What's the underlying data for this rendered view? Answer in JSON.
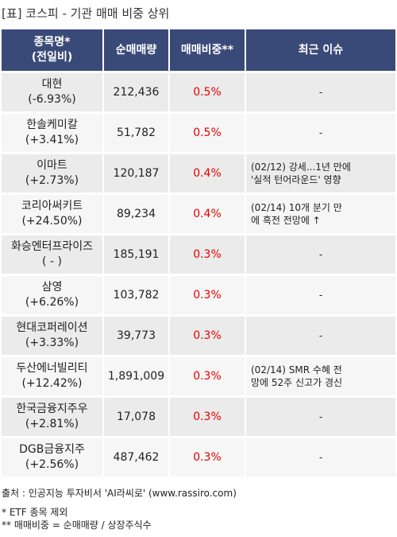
{
  "title": "[표] 코스피 - 기관 매매 비중 상위",
  "header": {
    "col1_line1": "종목명*",
    "col1_line2": "(전일비)",
    "col2": "순매매량",
    "col3": "매매비중**",
    "col4": "최근 이슈"
  },
  "rows": [
    {
      "name": "대현",
      "change": "(-6.93%)",
      "volume": "212,436",
      "ratio": "0.5%",
      "issue1": "-",
      "issue2": ""
    },
    {
      "name": "한솔케미칼",
      "change": "(+3.41%)",
      "volume": "51,782",
      "ratio": "0.5%",
      "issue1": "-",
      "issue2": ""
    },
    {
      "name": "이마트",
      "change": "(+2.73%)",
      "volume": "120,187",
      "ratio": "0.4%",
      "issue1": "(02/12) 강세...1년 만에",
      "issue2": "'실적 턴어라운드' 영향"
    },
    {
      "name": "코리아써키트",
      "change": "(+24.50%)",
      "volume": "89,234",
      "ratio": "0.4%",
      "issue1": "(02/14) 10개 분기 만",
      "issue2": "에 흑전 전망에 ↑"
    },
    {
      "name": "화승엔터프라이즈",
      "change": "( - )",
      "volume": "185,191",
      "ratio": "0.3%",
      "issue1": "-",
      "issue2": ""
    },
    {
      "name": "삼영",
      "change": "(+6.26%)",
      "volume": "103,782",
      "ratio": "0.3%",
      "issue1": "-",
      "issue2": ""
    },
    {
      "name": "현대코퍼레이션",
      "change": "(+3.33%)",
      "volume": "39,773",
      "ratio": "0.3%",
      "issue1": "-",
      "issue2": ""
    },
    {
      "name": "두산에너빌리티",
      "change": "(+12.42%)",
      "volume": "1,891,009",
      "ratio": "0.3%",
      "issue1": "(02/14) SMR 수혜 전",
      "issue2": "망에 52주 신고가 경신"
    },
    {
      "name": "한국금융지주우",
      "change": "(+2.81%)",
      "volume": "17,078",
      "ratio": "0.3%",
      "issue1": "-",
      "issue2": ""
    },
    {
      "name": "DGB금융지주",
      "change": "(+2.56%)",
      "volume": "487,462",
      "ratio": "0.3%",
      "issue1": "-",
      "issue2": ""
    }
  ],
  "footer": {
    "source": "출처 : 인공지능 투자비서 'AI라씨로' (www.rassiro.com)",
    "note1": "* ETF 종목 제외",
    "note2": "** 매매비중 = 순매매량 / 상장주식수"
  },
  "colors": {
    "header_bg": "#3a4a78",
    "ratio_text": "#e60000"
  }
}
